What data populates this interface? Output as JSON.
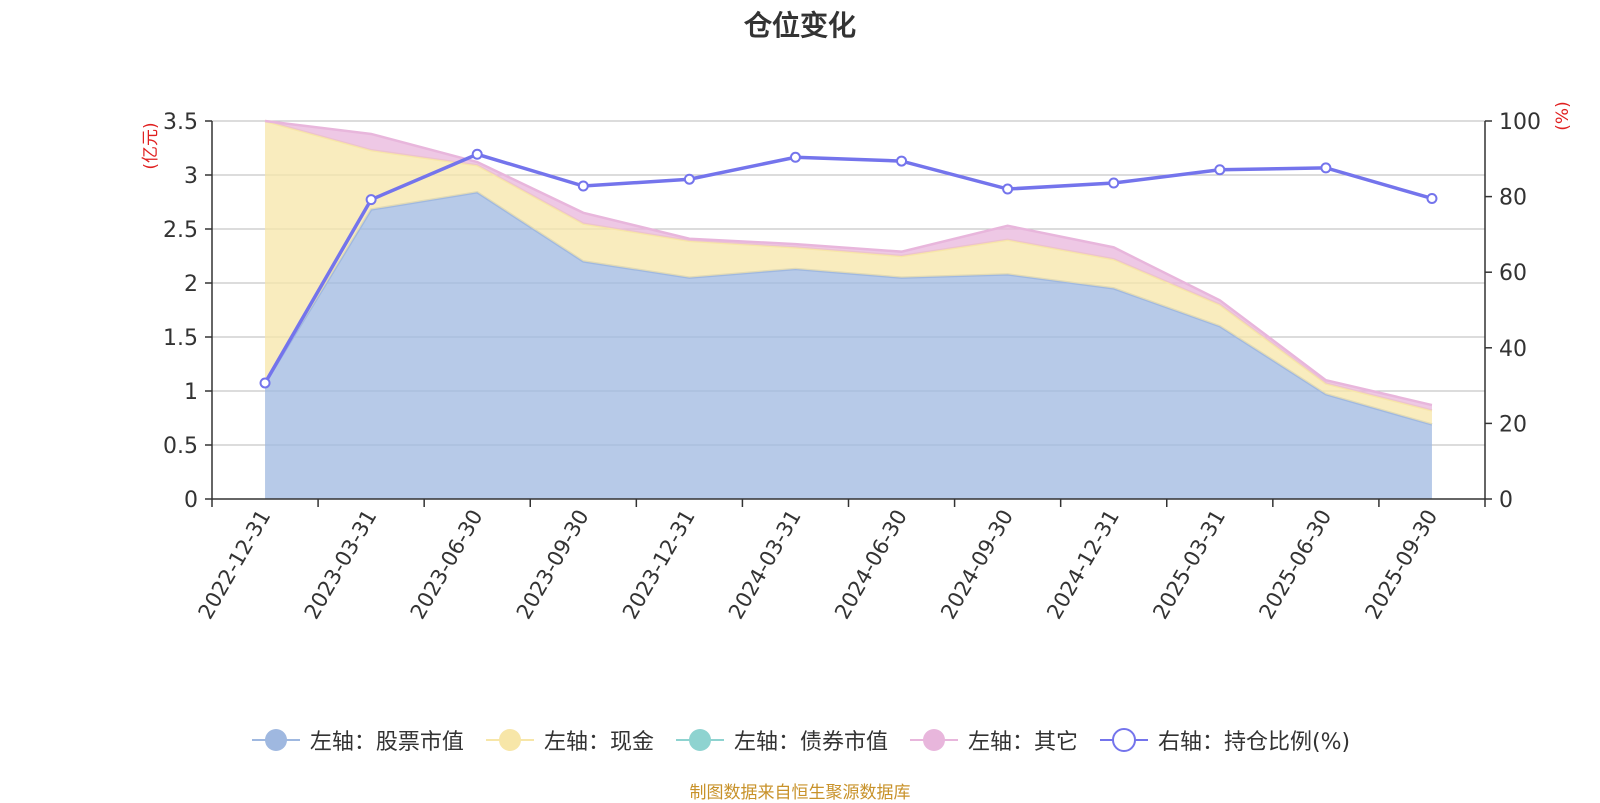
{
  "title": "仓位变化",
  "source_note": "制图数据来自恒生聚源数据库",
  "chart_data": {
    "type": "area",
    "title": "仓位变化",
    "categories": [
      "2022-12-31",
      "2023-03-31",
      "2023-06-30",
      "2023-09-30",
      "2023-12-31",
      "2024-03-31",
      "2024-06-30",
      "2024-09-30",
      "2024-12-31",
      "2025-03-31",
      "2025-06-30",
      "2025-09-30"
    ],
    "left_axis": {
      "label": "(亿元)",
      "min": 0,
      "max": 3.5,
      "ticks": [
        "0",
        "0.5",
        "1",
        "1.5",
        "2",
        "2.5",
        "3",
        "3.5"
      ],
      "tick_values": [
        0,
        0.5,
        1,
        1.5,
        2,
        2.5,
        3,
        3.5
      ]
    },
    "right_axis": {
      "label": "(%)",
      "min": 0,
      "max": 100,
      "ticks": [
        "0",
        "20",
        "40",
        "60",
        "80",
        "100"
      ],
      "tick_values": [
        0,
        20,
        40,
        60,
        80,
        100
      ]
    },
    "stacked": true,
    "series": [
      {
        "name": "左轴：股票市值",
        "axis": "left",
        "kind": "area",
        "color": "#9fb8e0",
        "values": [
          1.07,
          2.68,
          2.84,
          2.2,
          2.05,
          2.13,
          2.05,
          2.08,
          1.95,
          1.6,
          0.97,
          0.69
        ]
      },
      {
        "name": "左轴：现金",
        "axis": "left",
        "kind": "area",
        "color": "#f7e6a8",
        "values": [
          2.43,
          0.55,
          0.25,
          0.35,
          0.34,
          0.2,
          0.2,
          0.32,
          0.27,
          0.2,
          0.1,
          0.13
        ]
      },
      {
        "name": "左轴：债券市值",
        "axis": "left",
        "kind": "area",
        "color": "#8ed3d0",
        "values": [
          0,
          0,
          0,
          0,
          0,
          0,
          0,
          0,
          0,
          0,
          0,
          0
        ]
      },
      {
        "name": "左轴：其它",
        "axis": "left",
        "kind": "area",
        "color": "#e8b6dc",
        "values": [
          0.0,
          0.15,
          0.03,
          0.1,
          0.02,
          0.03,
          0.04,
          0.13,
          0.11,
          0.04,
          0.03,
          0.05
        ]
      },
      {
        "name": "右轴：持仓比例(%)",
        "axis": "right",
        "kind": "line",
        "color": "#7474ec",
        "values": [
          30.7,
          79.2,
          91.2,
          82.8,
          84.6,
          90.4,
          89.4,
          82.0,
          83.6,
          87.1,
          87.6,
          79.5
        ]
      }
    ]
  }
}
